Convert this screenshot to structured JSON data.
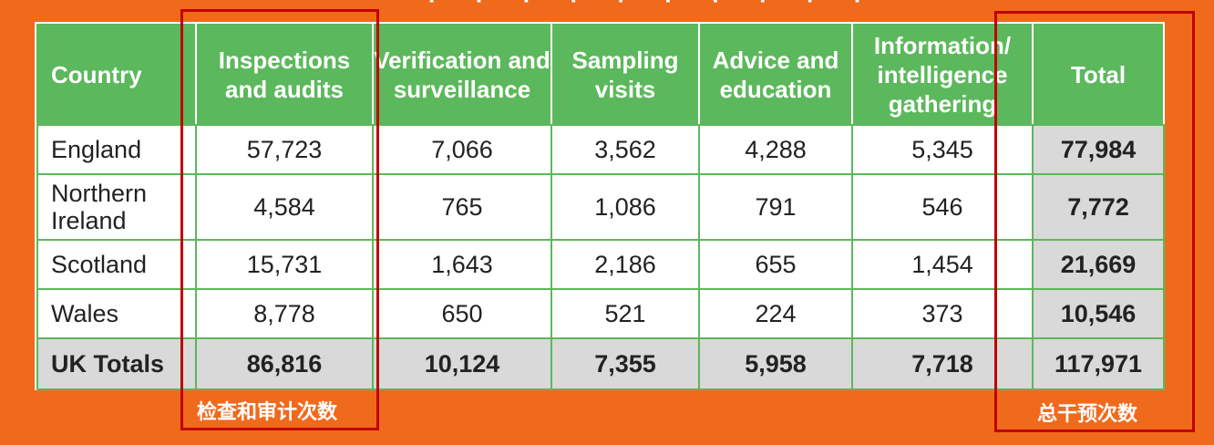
{
  "table": {
    "headers": [
      "Country",
      "Inspections and audits",
      "Verification and surveillance",
      "Sampling visits",
      "Advice and education",
      "Information/ intelligence gathering",
      "Total"
    ],
    "rows": [
      {
        "country": "England",
        "values": [
          "57,723",
          "7,066",
          "3,562",
          "4,288",
          "5,345"
        ],
        "total": "77,984"
      },
      {
        "country": "Northern Ireland",
        "values": [
          "4,584",
          "765",
          "1,086",
          "791",
          "546"
        ],
        "total": "7,772"
      },
      {
        "country": "Scotland",
        "values": [
          "15,731",
          "1,643",
          "2,186",
          "655",
          "1,454"
        ],
        "total": "21,669"
      },
      {
        "country": "Wales",
        "values": [
          "8,778",
          "650",
          "521",
          "224",
          "373"
        ],
        "total": "10,546"
      }
    ],
    "totals": {
      "label": "UK Totals",
      "values": [
        "86,816",
        "10,124",
        "7,355",
        "5,958",
        "7,718"
      ],
      "total": "117,971"
    }
  },
  "annotations": {
    "left_label": "检查和审计次数",
    "right_label": "总干预次数"
  },
  "colors": {
    "background": "#f06a1c",
    "header": "#5cb85c",
    "highlight_box": "#c00000",
    "total_cell": "#d9d9d9"
  }
}
